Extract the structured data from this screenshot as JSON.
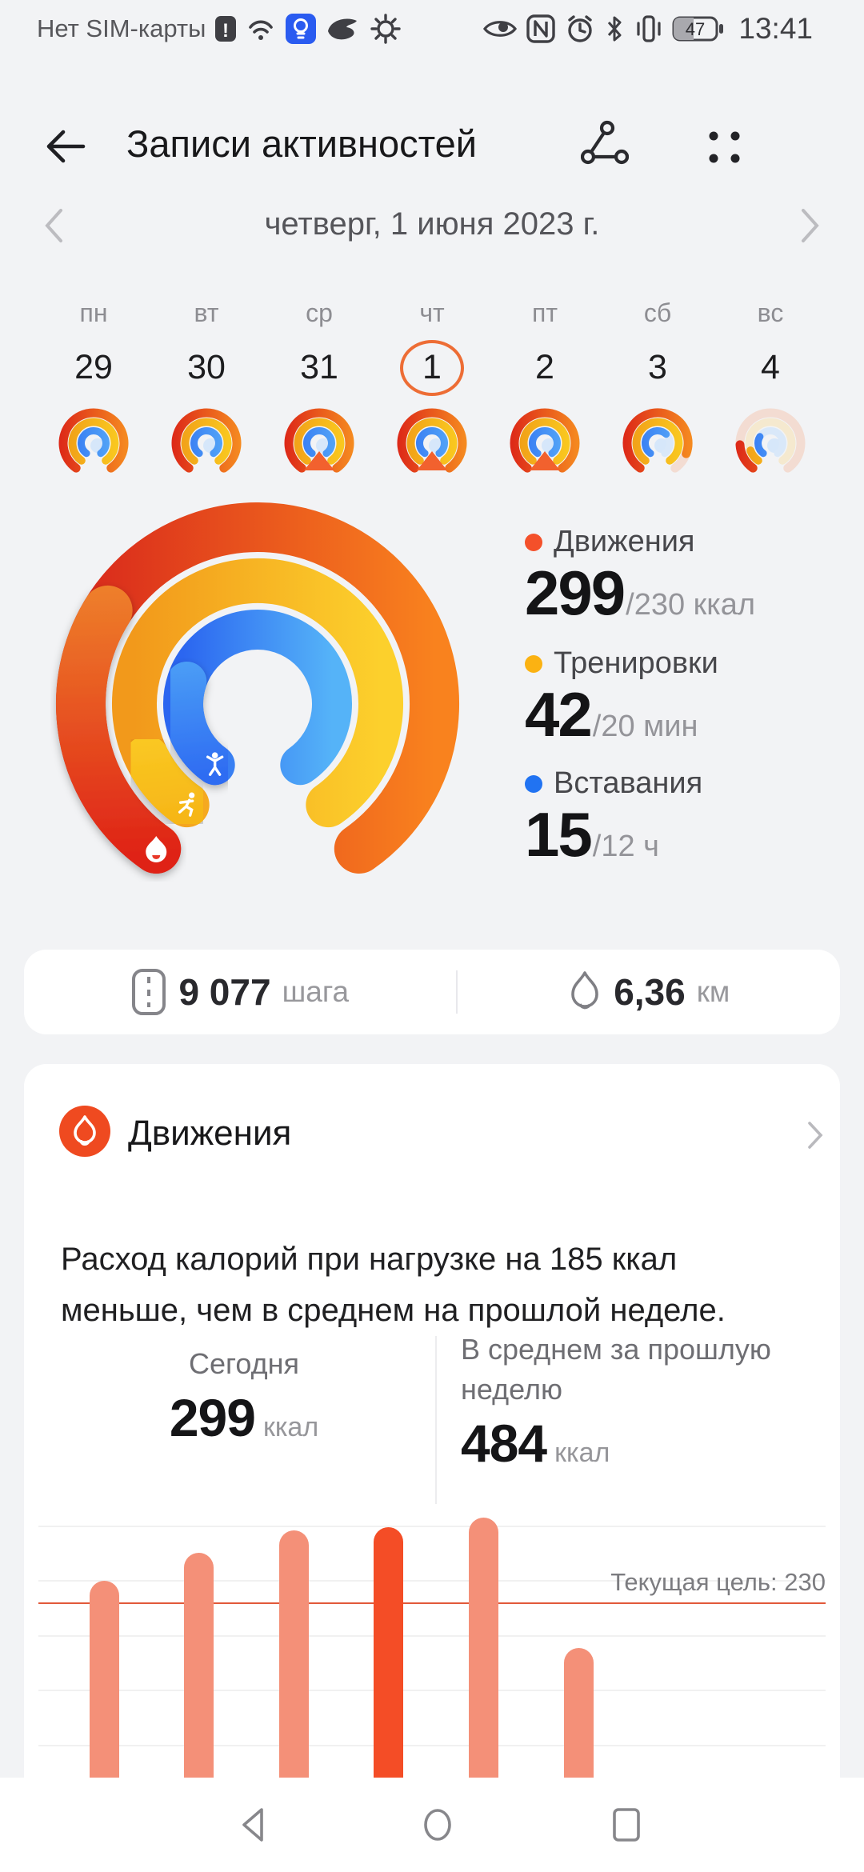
{
  "status_bar": {
    "no_sim_text": "Нет SIM-карты",
    "icons_left": [
      "sim-alert-icon",
      "wifi-icon",
      "flashlight-icon",
      "vpn-icon",
      "sync-gear-icon"
    ],
    "icons_right": [
      "eye-icon",
      "nfc-icon",
      "alarm-icon",
      "bluetooth-icon",
      "vibrate-icon",
      "battery-icon"
    ],
    "battery_percent": "47",
    "time": "13:41"
  },
  "header": {
    "title": "Записи активностей",
    "icons": [
      "back-arrow-icon",
      "share-route-icon",
      "grid-menu-icon"
    ]
  },
  "date_nav": {
    "date_label": "четверг, 1 июня 2023 г."
  },
  "week": {
    "days": [
      {
        "label": "пн",
        "date": "29",
        "selected": false,
        "badge": false,
        "faded": false,
        "rings": [
          1,
          1,
          1
        ]
      },
      {
        "label": "вт",
        "date": "30",
        "selected": false,
        "badge": false,
        "faded": false,
        "rings": [
          1,
          1,
          1
        ]
      },
      {
        "label": "ср",
        "date": "31",
        "selected": false,
        "badge": true,
        "faded": false,
        "rings": [
          1,
          1,
          1
        ]
      },
      {
        "label": "чт",
        "date": "1",
        "selected": true,
        "badge": true,
        "faded": false,
        "rings": [
          1,
          1,
          1
        ]
      },
      {
        "label": "пт",
        "date": "2",
        "selected": false,
        "badge": true,
        "faded": false,
        "rings": [
          1,
          1,
          1
        ]
      },
      {
        "label": "сб",
        "date": "3",
        "selected": false,
        "badge": false,
        "faded": false,
        "rings": [
          0.88,
          1,
          0.65
        ]
      },
      {
        "label": "вс",
        "date": "4",
        "selected": false,
        "badge": false,
        "faded": true,
        "rings": [
          0.18,
          0.12,
          0.3
        ]
      }
    ]
  },
  "activity_rings": {
    "move": {
      "label": "Движения",
      "value": 299,
      "goal": 230,
      "value_text": "299",
      "goal_text": "/230 ккал",
      "color": "#f4502a"
    },
    "exercise": {
      "label": "Тренировки",
      "value": 42,
      "goal": 20,
      "value_text": "42",
      "goal_text": "/20 мин",
      "color": "#fbb212"
    },
    "stand": {
      "label": "Вставания",
      "value": 15,
      "goal": 12,
      "value_text": "15",
      "goal_text": "/12 ч",
      "color": "#2173f2"
    }
  },
  "summary": {
    "steps_value": "9 077",
    "steps_unit": "шага",
    "distance_value": "6,36",
    "distance_unit": "км"
  },
  "move_card": {
    "title": "Движения",
    "description": "Расход калорий при нагрузке на 185 ккал меньше, чем в среднем на прошлой неделе.",
    "today_label": "Сегодня",
    "today_value": "299",
    "today_unit": "ккал",
    "avg_label": "В среднем за прошлую неделю",
    "avg_value": "484",
    "avg_unit": "ккал"
  },
  "chart_data": {
    "type": "bar",
    "title": "Расход калорий по дням",
    "values": [
      250,
      276,
      296,
      299,
      308,
      189
    ],
    "highlight_index": 3,
    "target_value": 230,
    "target_label": "Текущая цель: 230",
    "gridlines": [
      300,
      250,
      200,
      150,
      100
    ],
    "ylim": [
      0,
      313
    ],
    "legend": [],
    "bar_color": "#f49078",
    "highlight_color": "#f44d26",
    "target_line_color": "#e2593a"
  },
  "nav_bar": {
    "icons": [
      "nav-back-icon",
      "nav-home-icon",
      "nav-recents-icon"
    ]
  }
}
